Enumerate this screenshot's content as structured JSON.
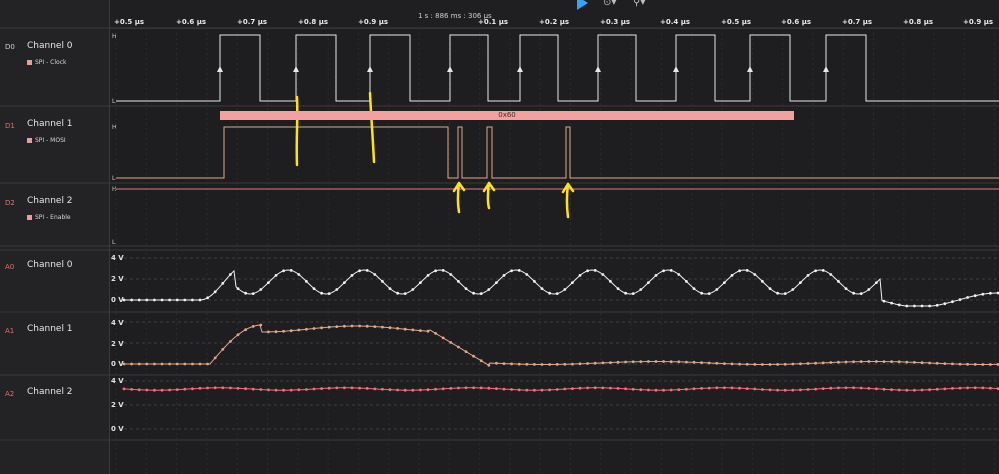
{
  "toolbar": {
    "time_center": "1 s : 886 ms : 306 µs",
    "play_icon": "play-icon",
    "tool_icons": [
      "timer-icon",
      "branch-icon"
    ]
  },
  "ruler": {
    "ticks": [
      "+0.5 µs",
      "+0.6 µs",
      "+0.7 µs",
      "+0.8 µs",
      "+0.9 µs",
      "+0.1 µs",
      "+0.2 µs",
      "+0.3 µs",
      "+0.4 µs",
      "+0.5 µs",
      "+0.6 µs",
      "+0.7 µs",
      "+0.8 µs",
      "+0.9 µs"
    ]
  },
  "channels": {
    "d0": {
      "id": "D0",
      "name": "Channel 0",
      "analyzer": "SPI - Clock",
      "color": "#f09a9a",
      "high": "H",
      "low": "L"
    },
    "d1": {
      "id": "D1",
      "name": "Channel 1",
      "analyzer": "SPI - MOSI",
      "color": "#f09a9a",
      "high": "H",
      "low": "L"
    },
    "d2": {
      "id": "D2",
      "name": "Channel 2",
      "analyzer": "SPI - Enable",
      "color": "#f09a9a",
      "high": "H",
      "low": "L"
    },
    "a0": {
      "id": "A0",
      "name": "Channel 0",
      "color": "#ffffff",
      "y_labels": [
        "4 V",
        "2 V",
        "0 V"
      ]
    },
    "a1": {
      "id": "A1",
      "name": "Channel 1",
      "color": "#e0a88a",
      "y_labels": [
        "4 V",
        "2 V",
        "0 V"
      ]
    },
    "a2": {
      "id": "A2",
      "name": "Channel 2",
      "color": "#ff6b7d",
      "y_labels": [
        "4 V",
        "2 V",
        "0 V"
      ]
    }
  },
  "decode": {
    "value": "0x60",
    "color": "#f2a0a0"
  },
  "colors": {
    "id_digital": "#e07070",
    "id_analog": "#e07070",
    "annotation": "#ffe11a"
  }
}
